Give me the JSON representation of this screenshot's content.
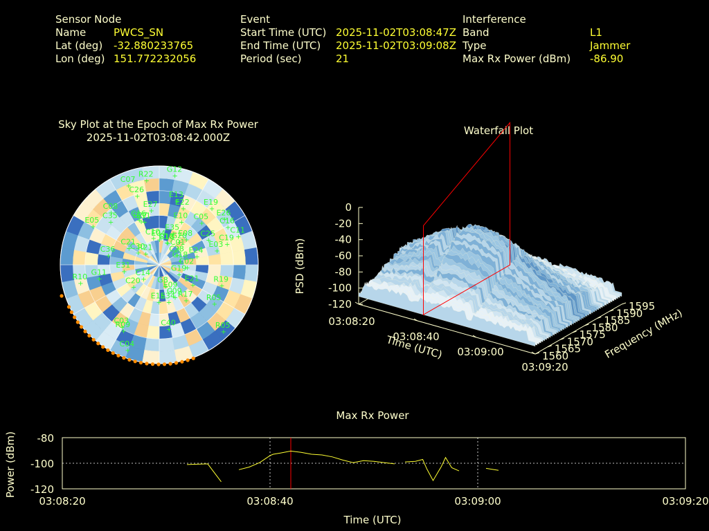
{
  "info": {
    "sensor": {
      "heading": "Sensor Node",
      "name_label": "Name",
      "name": "PWCS_SN",
      "lat_label": "Lat (deg)",
      "lat": "-32.880233765",
      "lon_label": "Lon (deg)",
      "lon": "151.772232056"
    },
    "event": {
      "heading": "Event",
      "start_label": "Start Time (UTC)",
      "start": "2025-11-02T03:08:47Z",
      "end_label": "End Time (UTC)",
      "end": "2025-11-02T03:09:08Z",
      "period_label": "Period (sec)",
      "period": "21"
    },
    "interference": {
      "heading": "Interference",
      "band_label": "Band",
      "band": "L1",
      "type_label": "Type",
      "type": "Jammer",
      "max_label": "Max Rx Power (dBm)",
      "max": "-86.90"
    }
  },
  "colors": {
    "label": "#ffffcc",
    "value": "#ffff33",
    "sat": "#33ff33",
    "marker": "#ff0000",
    "horizon": "#ff8c00"
  },
  "chart_data": [
    {
      "type": "scatter",
      "title": "Sky Plot at the Epoch of Max Rx Power",
      "subtitle": "2025-11-02T03:08:42.000Z",
      "satellites": [
        "G12",
        "E34",
        "C10",
        "C16",
        "C08",
        "C36",
        "C05",
        "E08",
        "C16",
        "C20",
        "C21",
        "E26",
        "C03",
        "C01",
        "C04",
        "C02",
        "C14",
        "C07",
        "C09",
        "C19",
        "E09",
        "R21",
        "E22",
        "E04",
        "R09",
        "E03",
        "E05",
        "C26",
        "C30",
        "R19",
        "C40",
        "E15",
        "C35",
        "E35",
        "C28",
        "E27",
        "E13",
        "R18",
        "C25",
        "E10",
        "E19",
        "R22",
        "G20",
        "C10",
        "R05",
        "G18",
        "E21",
        "C11",
        "E24",
        "G8",
        "G11",
        "R17",
        "E31",
        "G19",
        "R05",
        "R10",
        "E27",
        "E11"
      ]
    },
    {
      "type": "area",
      "title": "Waterfall Plot",
      "xlabel": "Time (UTC)",
      "ylabel": "Frequency (MHz)",
      "zlabel": "PSD (dBm)",
      "x_ticks": [
        "03:08:20",
        "03:08:40",
        "03:09:00",
        "03:09:20"
      ],
      "y_ticks": [
        "1560",
        "1565",
        "1570",
        "1575",
        "1580",
        "1585",
        "1590",
        "1595"
      ],
      "z_ticks": [
        "0",
        "-20",
        "-40",
        "-60",
        "-80",
        "-100",
        "-120"
      ],
      "marker_time": "03:08:42"
    },
    {
      "type": "line",
      "title": "Max Rx Power",
      "xlabel": "Time (UTC)",
      "ylabel": "Power (dBm)",
      "ylim": [
        -120,
        -80
      ],
      "xlim_sec": [
        0,
        60
      ],
      "x_ticks": [
        "03:08:20",
        "03:08:40",
        "03:09:00",
        "03:09:20"
      ],
      "y_ticks": [
        "-80",
        "-100",
        "-120"
      ],
      "marker_sec": 22,
      "grid": true,
      "segments": [
        [
          [
            12,
            -101
          ],
          [
            14,
            -100.5
          ],
          [
            15.3,
            -114.5
          ]
        ],
        [
          [
            17,
            -105
          ],
          [
            18,
            -103
          ],
          [
            19,
            -99.5
          ],
          [
            20,
            -94
          ],
          [
            20.3,
            -93
          ],
          [
            21,
            -92
          ],
          [
            22,
            -90.5
          ],
          [
            23,
            -91.5
          ],
          [
            24,
            -93
          ],
          [
            25,
            -93.5
          ],
          [
            26,
            -95
          ],
          [
            27,
            -97.5
          ],
          [
            28,
            -99.5
          ],
          [
            29,
            -98
          ],
          [
            30,
            -98.5
          ],
          [
            31,
            -99.5
          ],
          [
            32,
            -100.5
          ]
        ],
        [
          [
            33,
            -99
          ],
          [
            34,
            -98.5
          ],
          [
            34.7,
            -97
          ],
          [
            35.1,
            -104.5
          ],
          [
            35.4,
            -109
          ],
          [
            35.7,
            -113.5
          ],
          [
            36.1,
            -108
          ],
          [
            36.5,
            -102.5
          ],
          [
            36.9,
            -95.5
          ],
          [
            37.5,
            -103.5
          ],
          [
            38.2,
            -106
          ]
        ],
        [
          [
            40.8,
            -104
          ],
          [
            42,
            -105.5
          ]
        ]
      ]
    }
  ]
}
